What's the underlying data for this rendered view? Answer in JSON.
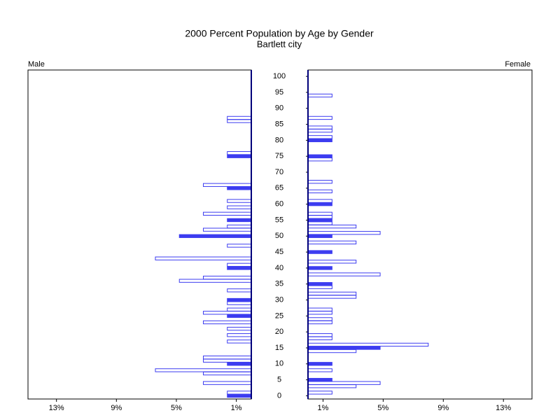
{
  "chart_data": {
    "type": "pyramid",
    "title": "2000 Percent Population by Age by Gender",
    "subtitle": "Bartlett city",
    "y": [
      0,
      1,
      2,
      3,
      4,
      5,
      6,
      7,
      8,
      9,
      10,
      11,
      12,
      13,
      14,
      15,
      16,
      17,
      18,
      19,
      20,
      21,
      22,
      23,
      24,
      25,
      26,
      27,
      28,
      29,
      30,
      31,
      32,
      33,
      34,
      35,
      36,
      37,
      38,
      39,
      40,
      41,
      42,
      43,
      44,
      45,
      46,
      47,
      48,
      49,
      50,
      51,
      52,
      53,
      54,
      55,
      56,
      57,
      58,
      59,
      60,
      61,
      62,
      63,
      64,
      65,
      66,
      67,
      68,
      69,
      70,
      71,
      72,
      73,
      74,
      75,
      76,
      77,
      78,
      79,
      80,
      81,
      82,
      83,
      84,
      85,
      86,
      87,
      88,
      89,
      90,
      91,
      92,
      93,
      94,
      95,
      96,
      97,
      98,
      99,
      100
    ],
    "ylim": [
      -1,
      102
    ],
    "yticks": [
      0,
      5,
      10,
      15,
      20,
      25,
      30,
      35,
      40,
      45,
      50,
      55,
      60,
      65,
      70,
      75,
      80,
      85,
      90,
      95,
      100
    ],
    "xlim": [
      0,
      14.9
    ],
    "xticks": [
      {
        "value": 1,
        "label": "1%"
      },
      {
        "value": 5,
        "label": "5%"
      },
      {
        "value": 9,
        "label": "9%"
      },
      {
        "value": 13,
        "label": "13%"
      }
    ],
    "filled_every": 5,
    "series": [
      {
        "name": "Male",
        "color": "#3c3cf0",
        "values": [
          1.6,
          1.6,
          0,
          0,
          3.2,
          0,
          0,
          3.2,
          6.4,
          0,
          1.6,
          3.2,
          3.2,
          0,
          0,
          0,
          0,
          1.6,
          0,
          1.6,
          0,
          1.6,
          0,
          3.2,
          0,
          1.6,
          3.2,
          1.6,
          0,
          1.6,
          1.6,
          0,
          0,
          1.6,
          0,
          0,
          4.8,
          3.2,
          0,
          0,
          1.6,
          1.6,
          0,
          6.4,
          0,
          0,
          0,
          1.6,
          0,
          0,
          4.8,
          0,
          3.2,
          1.6,
          0,
          1.6,
          0,
          3.2,
          0,
          1.6,
          0,
          1.6,
          0,
          0,
          0,
          1.6,
          3.2,
          0,
          0,
          0,
          0,
          0,
          0,
          0,
          0,
          1.6,
          1.6,
          0,
          0,
          0,
          0,
          0,
          0,
          0,
          0,
          0,
          1.6,
          1.6,
          0,
          0,
          0,
          0,
          0,
          0,
          0,
          0,
          0,
          0,
          0,
          0,
          0
        ]
      },
      {
        "name": "Female",
        "color": "#3c3cf0",
        "values": [
          0,
          1.6,
          0,
          3.2,
          4.8,
          1.6,
          0,
          0,
          1.6,
          0,
          1.6,
          0,
          0,
          0,
          3.2,
          4.8,
          8.0,
          0,
          1.6,
          1.6,
          0,
          0,
          0,
          1.6,
          1.6,
          0,
          1.6,
          1.6,
          0,
          0,
          0,
          3.2,
          3.2,
          0,
          1.6,
          1.6,
          0,
          0,
          4.8,
          0,
          1.6,
          0,
          3.2,
          0,
          0,
          1.6,
          0,
          0,
          3.2,
          0,
          1.6,
          4.8,
          0,
          3.2,
          1.6,
          1.6,
          1.6,
          1.6,
          0,
          0,
          1.6,
          1.6,
          0,
          0,
          1.6,
          0,
          0,
          1.6,
          0,
          0,
          0,
          0,
          0,
          0,
          1.6,
          1.6,
          0,
          0,
          0,
          0,
          1.6,
          1.6,
          0,
          1.6,
          1.6,
          0,
          0,
          1.6,
          0,
          0,
          0,
          0,
          0,
          0,
          1.6,
          0,
          0,
          0,
          0,
          0,
          0
        ]
      }
    ]
  }
}
